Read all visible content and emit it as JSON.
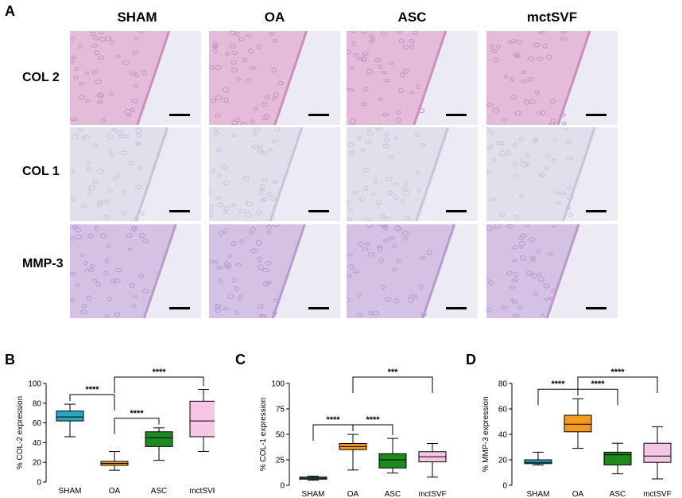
{
  "figure": {
    "panel_a_letter": "A",
    "columns": [
      "SHAM",
      "OA",
      "ASC",
      "mctSVF"
    ],
    "rows": [
      "COL 2",
      "COL 1",
      "MMP-3"
    ]
  },
  "chart_data": [
    {
      "panel": "B",
      "type": "box",
      "categories": [
        "SHAM",
        "OA",
        "ASC",
        "mctSVF"
      ],
      "ylabel": "% COL-2  expression",
      "ylim": [
        0,
        100
      ],
      "yticks": [
        0,
        20,
        40,
        60,
        80,
        100
      ],
      "boxes": [
        {
          "min": 46,
          "q1": 62,
          "median": 66,
          "q3": 72,
          "max": 79,
          "color": "#2aa7bf"
        },
        {
          "min": 12,
          "q1": 17,
          "median": 19,
          "q3": 21,
          "max": 31,
          "color": "#f29a1c"
        },
        {
          "min": 22,
          "q1": 36,
          "median": 45,
          "q3": 51,
          "max": 55,
          "color": "#1e8a1e"
        },
        {
          "min": 31,
          "q1": 46,
          "median": 62,
          "q3": 82,
          "max": 94,
          "color": "#f7c6e6"
        }
      ],
      "brackets": [
        {
          "from": 0,
          "to": 1,
          "label": "****",
          "level": 0
        },
        {
          "from": 1,
          "to": 2,
          "label": "****",
          "level": 0
        },
        {
          "from": 1,
          "to": 3,
          "label": "****",
          "level": 1
        }
      ]
    },
    {
      "panel": "C",
      "type": "box",
      "categories": [
        "SHAM",
        "OA",
        "ASC",
        "mctSVF"
      ],
      "ylabel": "% COL-1  expression",
      "ylim": [
        0,
        100
      ],
      "yticks": [
        0,
        25,
        50,
        75,
        100
      ],
      "boxes": [
        {
          "min": 5,
          "q1": 6,
          "median": 7,
          "q3": 8,
          "max": 9,
          "color": "#2aa7bf"
        },
        {
          "min": 15,
          "q1": 35,
          "median": 38,
          "q3": 41,
          "max": 50,
          "color": "#f29a1c"
        },
        {
          "min": 12,
          "q1": 17,
          "median": 25,
          "q3": 31,
          "max": 46,
          "color": "#1e8a1e"
        },
        {
          "min": 8,
          "q1": 23,
          "median": 28,
          "q3": 33,
          "max": 41,
          "color": "#f7c6e6"
        }
      ],
      "brackets": [
        {
          "from": 0,
          "to": 1,
          "label": "****",
          "level": 0
        },
        {
          "from": 1,
          "to": 2,
          "label": "****",
          "level": 0
        },
        {
          "from": 1,
          "to": 3,
          "label": "***",
          "level": 1
        }
      ]
    },
    {
      "panel": "D",
      "type": "box",
      "categories": [
        "SHAM",
        "OA",
        "ASC",
        "mctSVF"
      ],
      "ylabel": "% MMP-3 expression",
      "ylim": [
        0,
        80
      ],
      "yticks": [
        0,
        20,
        40,
        60,
        80
      ],
      "boxes": [
        {
          "min": 16,
          "q1": 17,
          "median": 18,
          "q3": 20,
          "max": 26,
          "color": "#2aa7bf"
        },
        {
          "min": 29,
          "q1": 42,
          "median": 48,
          "q3": 55,
          "max": 68,
          "color": "#f29a1c"
        },
        {
          "min": 9,
          "q1": 16,
          "median": 24,
          "q3": 26,
          "max": 33,
          "color": "#1e8a1e"
        },
        {
          "min": 5,
          "q1": 18,
          "median": 23,
          "q3": 33,
          "max": 46,
          "color": "#f7c6e6"
        }
      ],
      "brackets": [
        {
          "from": 0,
          "to": 1,
          "label": "****",
          "level": 0
        },
        {
          "from": 1,
          "to": 2,
          "label": "****",
          "level": 0
        },
        {
          "from": 1,
          "to": 3,
          "label": "****",
          "level": 1
        }
      ]
    }
  ]
}
